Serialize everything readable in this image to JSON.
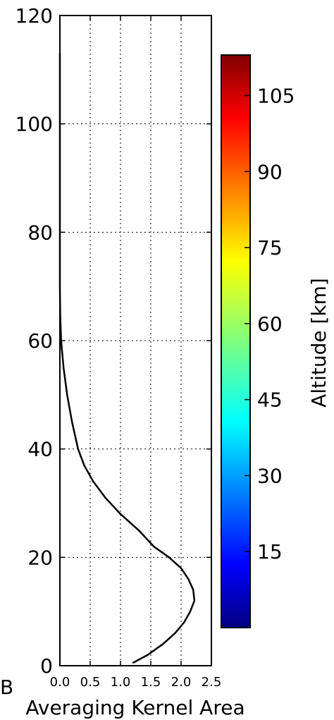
{
  "chart_data": {
    "type": "line",
    "panel_letter": "B",
    "xlabel": "Averaging Kernel Area",
    "ylabel": "",
    "xlim": [
      0.0,
      2.5
    ],
    "ylim": [
      0,
      120
    ],
    "x_ticks": [
      "0.0",
      "0.5",
      "1.0",
      "1.5",
      "2.0",
      "2.5"
    ],
    "y_ticks": [
      "0",
      "20",
      "40",
      "60",
      "80",
      "100",
      "120"
    ],
    "grid": true,
    "series": [
      {
        "color": "#000000",
        "x": [
          1.2,
          1.45,
          1.7,
          1.9,
          2.05,
          2.15,
          2.22,
          2.2,
          2.12,
          2.0,
          1.8,
          1.55,
          1.3,
          1.0,
          0.75,
          0.55,
          0.4,
          0.3,
          0.2,
          0.12,
          0.06,
          0.02,
          0.005,
          0.0,
          0.0
        ],
        "y": [
          0.5,
          2,
          4,
          6,
          8,
          10,
          12,
          14,
          16,
          18,
          20,
          22,
          25,
          28,
          31,
          34,
          37,
          40,
          45,
          50,
          55,
          60,
          65,
          70,
          113
        ]
      }
    ],
    "colorbar": {
      "label": "Altitude [km]",
      "colormap": "jet",
      "range": [
        0,
        113
      ],
      "ticks": [
        "15",
        "30",
        "45",
        "60",
        "75",
        "90",
        "105"
      ]
    }
  }
}
